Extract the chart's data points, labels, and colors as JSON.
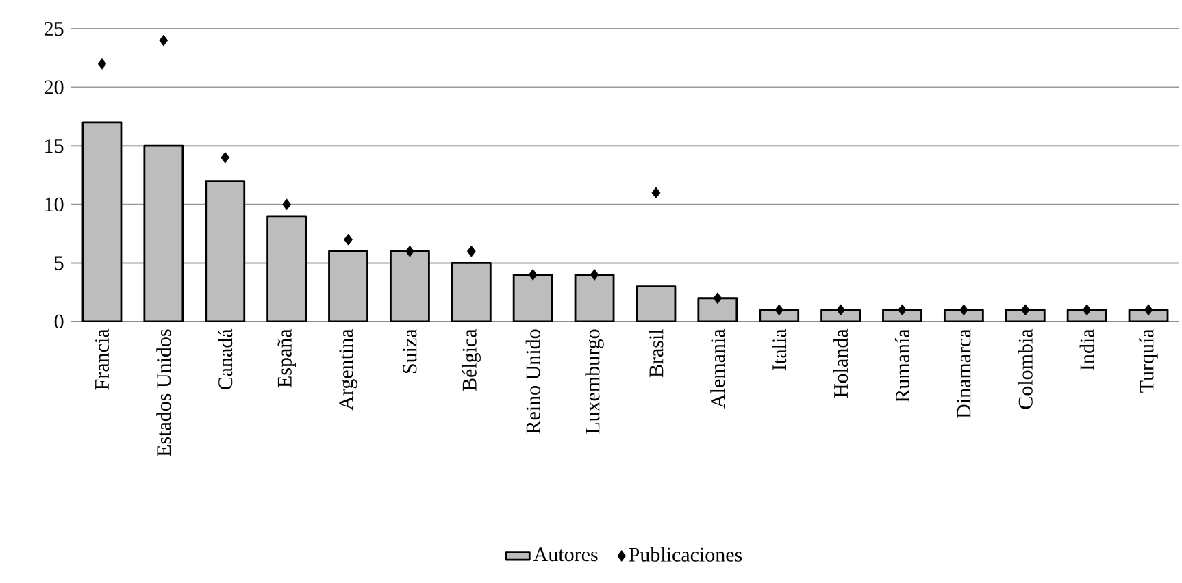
{
  "chart_data": {
    "type": "bar",
    "categories": [
      "Francia",
      "Estados Unidos",
      "Canadá",
      "España",
      "Argentina",
      "Suiza",
      "Bélgica",
      "Reino Unido",
      "Luxemburgo",
      "Brasil",
      "Alemania",
      "Italia",
      "Holanda",
      "Rumanía",
      "Dinamarca",
      "Colombia",
      "India",
      "Turquía"
    ],
    "series": [
      {
        "name": "Autores",
        "type": "bar",
        "color": "#bdbdbd",
        "values": [
          17,
          15,
          12,
          9,
          6,
          6,
          5,
          4,
          4,
          3,
          2,
          1,
          1,
          1,
          1,
          1,
          1,
          1
        ]
      },
      {
        "name": "Publicaciones",
        "type": "scatter",
        "color": "#000000",
        "marker": "diamond",
        "values": [
          22,
          24,
          14,
          10,
          7,
          6,
          6,
          4,
          4,
          11,
          2,
          1,
          1,
          1,
          1,
          1,
          1,
          1
        ]
      }
    ],
    "ylim": [
      0,
      25
    ],
    "yticks": [
      0,
      5,
      10,
      15,
      20,
      25
    ],
    "grid": "y",
    "legend": "bottom"
  }
}
